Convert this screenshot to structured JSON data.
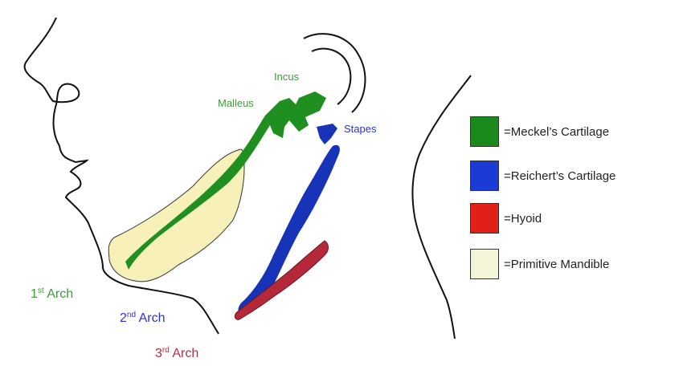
{
  "labels": {
    "incus": "Incus",
    "malleus": "Malleus",
    "stapes": "Stapes",
    "arch1_num": "1",
    "arch1_sup": "st",
    "arch1_word": " Arch",
    "arch2_num": "2",
    "arch2_sup": "nd",
    "arch2_word": " Arch",
    "arch3_num": "3",
    "arch3_sup": "rd",
    "arch3_word": " Arch"
  },
  "legend": [
    {
      "label": "=Meckel’s Cartilage",
      "color": "#1a8a1a"
    },
    {
      "label": "=Reichert’s Cartilage",
      "color": "#1a3bd6"
    },
    {
      "label": "=Hyoid",
      "color": "#e2201a"
    },
    {
      "label": "=Primitive Mandible",
      "color": "#f3f4d8"
    }
  ],
  "colors": {
    "meckel": "#1f8f1f",
    "reichert": "#1733b8",
    "hyoid": "#b4283a",
    "mandible": "#f7f0b8",
    "arch1_text": "#3f9a3a",
    "arch2_text": "#2a35c8",
    "arch3_text": "#b03040",
    "outline": "#111111"
  }
}
